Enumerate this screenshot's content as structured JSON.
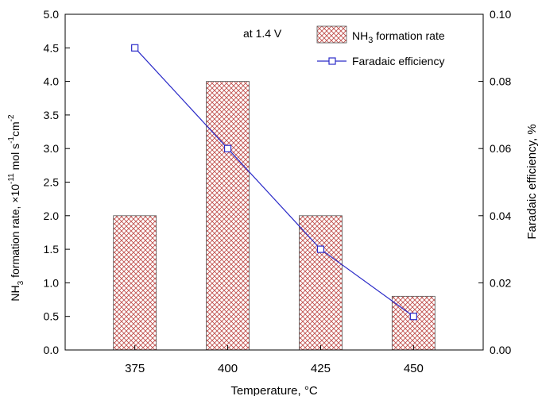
{
  "chart_data": {
    "type": "bar",
    "categories": [
      "375",
      "400",
      "425",
      "450"
    ],
    "xlabel": "Temperature, °C",
    "ylabel_left": {
      "prefix": "NH",
      "sub1": "3",
      "mid": " formation rate, ×10",
      "sup1": "-11",
      "mid2": " mol s",
      "sup2": "-1",
      "mid3": "cm",
      "sup3": "-2"
    },
    "ylabel_right": "Faradaic efficiency, %",
    "ylim_left": [
      0,
      5.0
    ],
    "ylim_right": [
      0,
      0.1
    ],
    "yticks_left": [
      "0.0",
      "0.5",
      "1.0",
      "1.5",
      "2.0",
      "2.5",
      "3.0",
      "3.5",
      "4.0",
      "4.5",
      "5.0"
    ],
    "yticks_right": [
      "0.00",
      "0.02",
      "0.04",
      "0.06",
      "0.08",
      "0.10"
    ],
    "annotation": "at 1.4 V",
    "legend_placement": "top-right",
    "series": [
      {
        "name": "NH3 formation rate",
        "legend_prefix": "NH",
        "legend_sub": "3",
        "legend_suffix": " formation rate",
        "kind": "bar",
        "axis": "left",
        "values": [
          2.0,
          4.0,
          2.0,
          0.8
        ],
        "color": "#c0504d"
      },
      {
        "name": "Faradaic efficiency",
        "kind": "line",
        "axis": "right",
        "values": [
          0.09,
          0.06,
          0.03,
          0.01
        ],
        "color": "#2b2bc8"
      }
    ]
  }
}
